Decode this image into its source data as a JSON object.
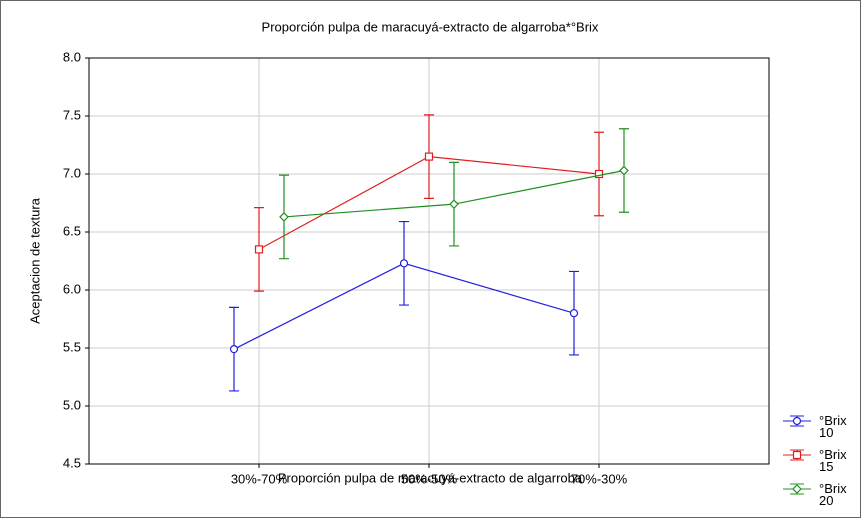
{
  "chart_data": {
    "type": "errorline",
    "title": "Proporción pulpa de maracuyá-extracto de algarroba*°Brix",
    "x_label": "Proporción pulpa de maracuyá-extracto de algarroba",
    "y_label": "Aceptacion de textura",
    "categories": [
      "30%-70%",
      "50%-50%",
      "70%-30%"
    ],
    "ylim": [
      4.5,
      8.0
    ],
    "yticks": [
      {
        "value": 4.5,
        "label": "4.5"
      },
      {
        "value": 5,
        "label": "5.0"
      },
      {
        "value": 5.5,
        "label": "5.5"
      },
      {
        "value": 6,
        "label": "6.0"
      },
      {
        "value": 6.5,
        "label": "6.5"
      },
      {
        "value": 7,
        "label": "7.0"
      },
      {
        "value": 7.5,
        "label": "7.5"
      },
      {
        "value": 8,
        "label": "8.0"
      }
    ],
    "grid": true,
    "legend": "right",
    "series": [
      {
        "name": "°Brix 10",
        "color": "#2020e0",
        "marker": "circle",
        "values": [
          5.49,
          6.23,
          5.8
        ],
        "errors": [
          0.36,
          0.36,
          0.36
        ]
      },
      {
        "name": "°Brix 15",
        "color": "#e02020",
        "marker": "square",
        "values": [
          6.35,
          7.15,
          7.0
        ],
        "errors": [
          0.36,
          0.36,
          0.36
        ]
      },
      {
        "name": "°Brix 20",
        "color": "#209020",
        "marker": "diamond",
        "values": [
          6.63,
          6.74,
          7.03
        ],
        "errors": [
          0.36,
          0.36,
          0.36
        ]
      }
    ]
  }
}
